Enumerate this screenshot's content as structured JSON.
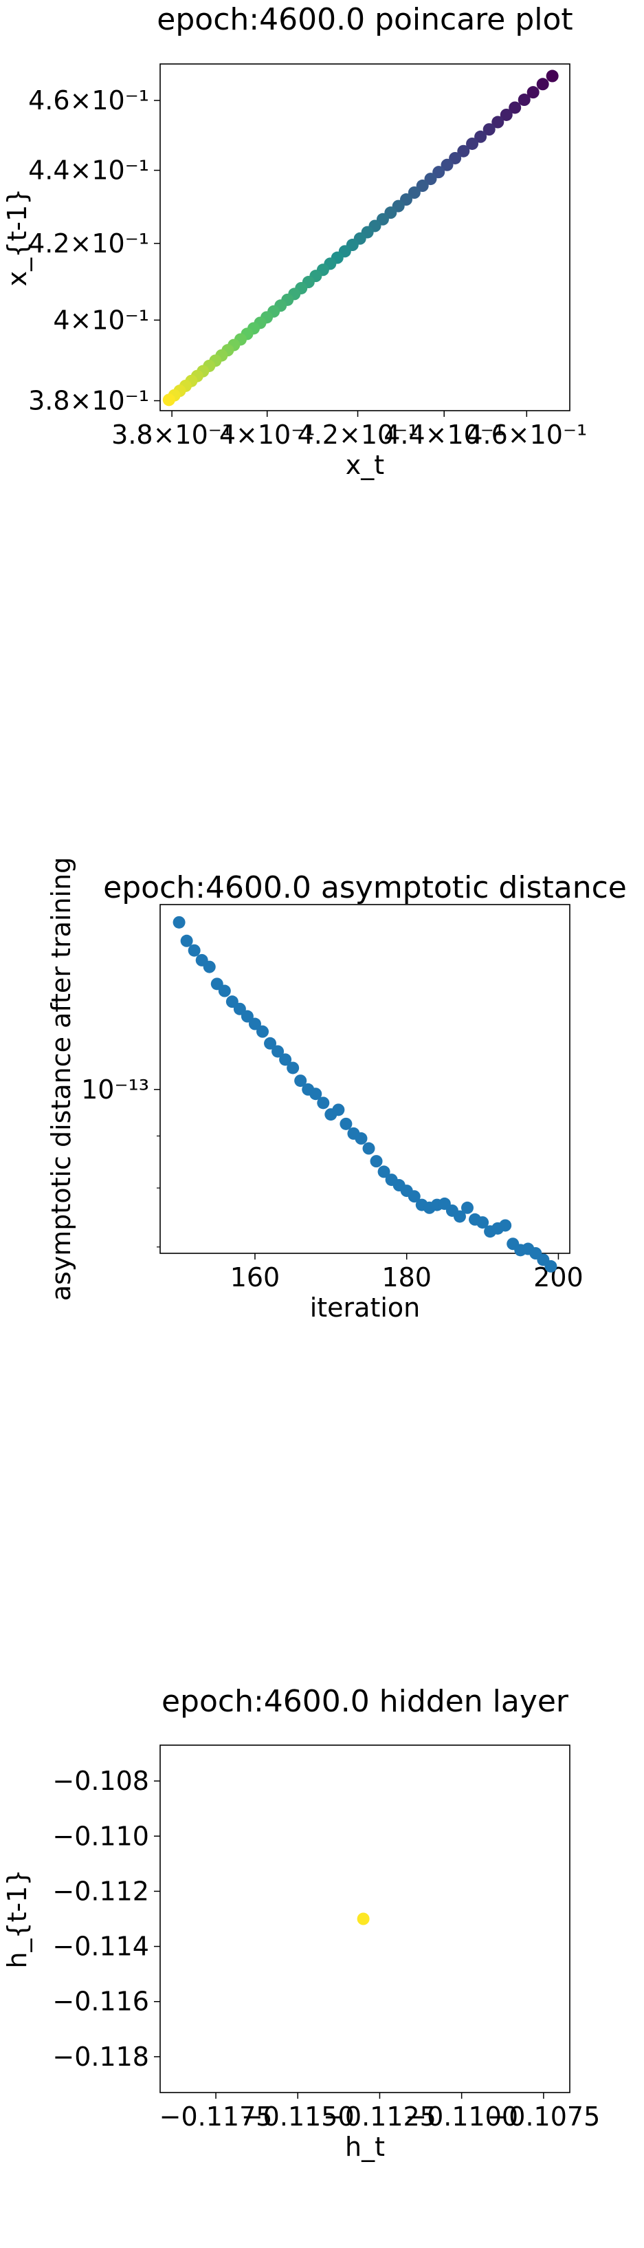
{
  "chart_data": [
    {
      "type": "scatter",
      "title": "epoch:4600.0 poincare plot",
      "xlabel": "x_t",
      "ylabel": "x_{t-1}",
      "xscale": "log",
      "yscale": "log",
      "xlim": [
        0.3776,
        0.4708
      ],
      "ylim": [
        0.3776,
        0.4708
      ],
      "colormap": "viridis",
      "x_ticks": [
        0.38,
        0.4,
        0.42,
        0.44,
        0.46
      ],
      "x_tick_labels": [
        "3.8×10⁻¹",
        "4×10⁻¹",
        "4.2×10⁻¹",
        "4.4×10⁻¹",
        "4.6×10⁻¹"
      ],
      "y_ticks": [
        0.38,
        0.4,
        0.42,
        0.44,
        0.46
      ],
      "y_tick_labels": [
        "3.8×10⁻¹",
        "4×10⁻¹",
        "4.2×10⁻¹",
        "4.4×10⁻¹",
        "4.6×10⁻¹"
      ],
      "points": [
        {
          "x": 0.4664,
          "y": 0.4672
        },
        {
          "x": 0.464,
          "y": 0.4648
        },
        {
          "x": 0.4616,
          "y": 0.4624
        },
        {
          "x": 0.4594,
          "y": 0.4602
        },
        {
          "x": 0.4571,
          "y": 0.4579
        },
        {
          "x": 0.455,
          "y": 0.4558
        },
        {
          "x": 0.4529,
          "y": 0.4537
        },
        {
          "x": 0.4508,
          "y": 0.4516
        },
        {
          "x": 0.4487,
          "y": 0.4495
        },
        {
          "x": 0.4467,
          "y": 0.4475
        },
        {
          "x": 0.4446,
          "y": 0.4454
        },
        {
          "x": 0.4426,
          "y": 0.4434
        },
        {
          "x": 0.4407,
          "y": 0.4415
        },
        {
          "x": 0.4387,
          "y": 0.4395
        },
        {
          "x": 0.4368,
          "y": 0.4376
        },
        {
          "x": 0.4349,
          "y": 0.4357
        },
        {
          "x": 0.433,
          "y": 0.4338
        },
        {
          "x": 0.4311,
          "y": 0.4319
        },
        {
          "x": 0.4293,
          "y": 0.4301
        },
        {
          "x": 0.4275,
          "y": 0.4283
        },
        {
          "x": 0.4257,
          "y": 0.4265
        },
        {
          "x": 0.4239,
          "y": 0.4247
        },
        {
          "x": 0.4222,
          "y": 0.423
        },
        {
          "x": 0.4205,
          "y": 0.4213
        },
        {
          "x": 0.4188,
          "y": 0.4196
        },
        {
          "x": 0.4171,
          "y": 0.4179
        },
        {
          "x": 0.4154,
          "y": 0.4162
        },
        {
          "x": 0.4138,
          "y": 0.4146
        },
        {
          "x": 0.4122,
          "y": 0.413
        },
        {
          "x": 0.4106,
          "y": 0.4114
        },
        {
          "x": 0.409,
          "y": 0.4098
        },
        {
          "x": 0.4074,
          "y": 0.4082
        },
        {
          "x": 0.4059,
          "y": 0.4067
        },
        {
          "x": 0.4044,
          "y": 0.4052
        },
        {
          "x": 0.4029,
          "y": 0.4037
        },
        {
          "x": 0.4014,
          "y": 0.4022
        },
        {
          "x": 0.3999,
          "y": 0.4007
        },
        {
          "x": 0.3985,
          "y": 0.3993
        },
        {
          "x": 0.3971,
          "y": 0.3979
        },
        {
          "x": 0.3957,
          "y": 0.3965
        },
        {
          "x": 0.3943,
          "y": 0.3951
        },
        {
          "x": 0.3929,
          "y": 0.3937
        },
        {
          "x": 0.3916,
          "y": 0.3924
        },
        {
          "x": 0.3903,
          "y": 0.3911
        },
        {
          "x": 0.389,
          "y": 0.3898
        },
        {
          "x": 0.3877,
          "y": 0.3885
        },
        {
          "x": 0.3864,
          "y": 0.3872
        },
        {
          "x": 0.3852,
          "y": 0.386
        },
        {
          "x": 0.384,
          "y": 0.3848
        },
        {
          "x": 0.3828,
          "y": 0.3836
        },
        {
          "x": 0.3816,
          "y": 0.3824
        },
        {
          "x": 0.3805,
          "y": 0.3813
        },
        {
          "x": 0.3794,
          "y": 0.3802
        }
      ]
    },
    {
      "type": "scatter",
      "title": "epoch:4600.0 asymptotic distance",
      "xlabel": "iteration",
      "ylabel": "asymptotic distance after training",
      "yscale": "log",
      "xlim": [
        147.5,
        201.5
      ],
      "ylim": [
        6.9e-14,
        1.52e-13
      ],
      "color": "#1f77b4",
      "x_ticks": [
        160,
        180,
        200
      ],
      "x_tick_labels": [
        "160",
        "180",
        "200"
      ],
      "y_ticks": [
        1e-13
      ],
      "y_tick_labels": [
        "10⁻¹³"
      ],
      "y_minor_ticks": [
        7e-14,
        8e-14,
        9e-14,
        2e-13
      ],
      "x": [
        150,
        151,
        152,
        153,
        154,
        155,
        156,
        157,
        158,
        159,
        160,
        161,
        162,
        163,
        164,
        165,
        166,
        167,
        168,
        169,
        170,
        171,
        172,
        173,
        174,
        175,
        176,
        177,
        178,
        179,
        180,
        181,
        182,
        183,
        184,
        185,
        186,
        187,
        188,
        189,
        190,
        191,
        192,
        193,
        194,
        195,
        196,
        197,
        198,
        199
      ],
      "y": [
        1.46e-13,
        1.4e-13,
        1.37e-13,
        1.34e-13,
        1.32e-13,
        1.27e-13,
        1.25e-13,
        1.22e-13,
        1.2e-13,
        1.18e-13,
        1.16e-13,
        1.14e-13,
        1.11e-13,
        1.09e-13,
        1.07e-13,
        1.05e-13,
        1.02e-13,
        1e-13,
        9.9e-14,
        9.7e-14,
        9.45e-14,
        9.55e-14,
        9.25e-14,
        9.05e-14,
        8.95e-14,
        8.75e-14,
        8.5e-14,
        8.3e-14,
        8.15e-14,
        8.05e-14,
        7.95e-14,
        7.85e-14,
        7.7e-14,
        7.65e-14,
        7.7e-14,
        7.72e-14,
        7.6e-14,
        7.5e-14,
        7.65e-14,
        7.45e-14,
        7.4e-14,
        7.25e-14,
        7.3e-14,
        7.35e-14,
        7.05e-14,
        6.95e-14,
        6.97e-14,
        6.9e-14,
        6.8e-14,
        6.7e-14
      ]
    },
    {
      "type": "scatter",
      "title": "epoch:4600.0 hidden layer",
      "xlabel": "h_t",
      "ylabel": "h_{t-1}",
      "xlim": [
        -0.1192,
        -0.1067
      ],
      "ylim": [
        -0.1193,
        -0.1067
      ],
      "color": "#fde725",
      "x_ticks": [
        -0.1175,
        -0.115,
        -0.1125,
        -0.11,
        -0.1075
      ],
      "x_tick_labels": [
        "−0.1175",
        "−0.1150",
        "−0.1125",
        "−0.1100",
        "−0.1075"
      ],
      "y_ticks": [
        -0.108,
        -0.11,
        -0.112,
        -0.114,
        -0.116,
        -0.118
      ],
      "y_tick_labels": [
        "−0.108",
        "−0.110",
        "−0.112",
        "−0.114",
        "−0.116",
        "−0.118"
      ],
      "points": [
        {
          "x": -0.113,
          "y": -0.113
        }
      ]
    }
  ]
}
